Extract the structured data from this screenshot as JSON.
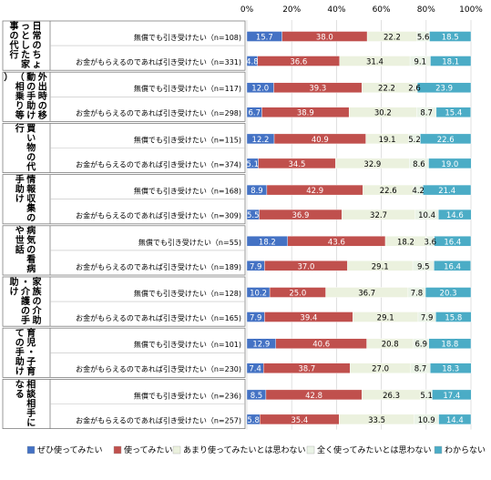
{
  "chart_data": {
    "type": "bar",
    "stacked": true,
    "orientation": "horizontal",
    "x_ticks": [
      "0%",
      "20%",
      "40%",
      "60%",
      "80%",
      "100%"
    ],
    "xlim": [
      0,
      100
    ],
    "legend_position": "bottom",
    "series": [
      {
        "name": "ぜひ使ってみたい",
        "color": "#4472C4"
      },
      {
        "name": "使ってみたい",
        "color": "#C0504D"
      },
      {
        "name": "あまり使ってみたいとは思わない",
        "color": "#EBF1DE"
      },
      {
        "name": "全く使ってみたいとは思わない",
        "color": "#EAF3E6"
      },
      {
        "name": "わからない",
        "color": "#4BACC6"
      }
    ],
    "groups": [
      {
        "label": "日常のちょっとした家事の代行",
        "rows": [
          {
            "label": "無償でも引き受けたい（n=108)",
            "values": [
              15.7,
              38.0,
              22.2,
              5.6,
              18.5
            ]
          },
          {
            "label": "お金がもらえるのであれば引き受けたい（n=331)",
            "values": [
              4.8,
              36.6,
              31.4,
              9.1,
              18.1
            ]
          }
        ]
      },
      {
        "label": "外出時の移動の手助け（相乗り等）",
        "rows": [
          {
            "label": "無償でも引き受けたい（n=117)",
            "values": [
              12.0,
              39.3,
              22.2,
              2.6,
              23.9
            ]
          },
          {
            "label": "お金がもらえるのであれば引き受けたい（n=298)",
            "values": [
              6.7,
              38.9,
              30.2,
              8.7,
              15.4
            ]
          }
        ]
      },
      {
        "label": "買い物の代行",
        "rows": [
          {
            "label": "無償でも引き受けたい（n=115)",
            "values": [
              12.2,
              40.9,
              19.1,
              5.2,
              22.6
            ]
          },
          {
            "label": "お金がもらえるのであれば引き受けたい（n=374)",
            "values": [
              5.1,
              34.5,
              32.9,
              8.6,
              19.0
            ]
          }
        ]
      },
      {
        "label": "情報収集の手助け",
        "rows": [
          {
            "label": "無償でも引き受けたい（n=168)",
            "values": [
              8.9,
              42.9,
              22.6,
              4.2,
              21.4
            ]
          },
          {
            "label": "お金がもらえるのであれば引き受けたい（n=309)",
            "values": [
              5.5,
              36.9,
              32.7,
              10.4,
              14.6
            ]
          }
        ]
      },
      {
        "label": "病気の看病や世話",
        "rows": [
          {
            "label": "無償でも引き受けたい（n=55)",
            "values": [
              18.2,
              43.6,
              18.2,
              3.6,
              16.4
            ]
          },
          {
            "label": "お金がもらえるのであれば引き受けたい（n=189)",
            "values": [
              7.9,
              37.0,
              29.1,
              9.5,
              16.4
            ]
          }
        ]
      },
      {
        "label": "家族の介助・介護の手助け",
        "rows": [
          {
            "label": "無償でも引き受けたい（n=128)",
            "values": [
              10.2,
              25.0,
              36.7,
              7.8,
              20.3
            ]
          },
          {
            "label": "お金がもらえるのであれば引き受けたい（n=165)",
            "values": [
              7.9,
              39.4,
              29.1,
              7.9,
              15.8
            ]
          }
        ]
      },
      {
        "label": "育児・子育ての手助け",
        "rows": [
          {
            "label": "無償でも引き受けたい（n=101)",
            "values": [
              12.9,
              40.6,
              20.8,
              6.9,
              18.8
            ]
          },
          {
            "label": "お金がもらえるのであれば引き受けたい（n=230)",
            "values": [
              7.4,
              38.7,
              27.0,
              8.7,
              18.3
            ]
          }
        ]
      },
      {
        "label": "相談相手になる",
        "rows": [
          {
            "label": "無償でも引き受けたい（n=236)",
            "values": [
              8.5,
              42.8,
              26.3,
              5.1,
              17.4
            ]
          },
          {
            "label": "お金がもらえるのであれば引き受けたい（n=257)",
            "values": [
              5.8,
              35.4,
              33.5,
              10.9,
              14.4
            ]
          }
        ]
      }
    ]
  }
}
